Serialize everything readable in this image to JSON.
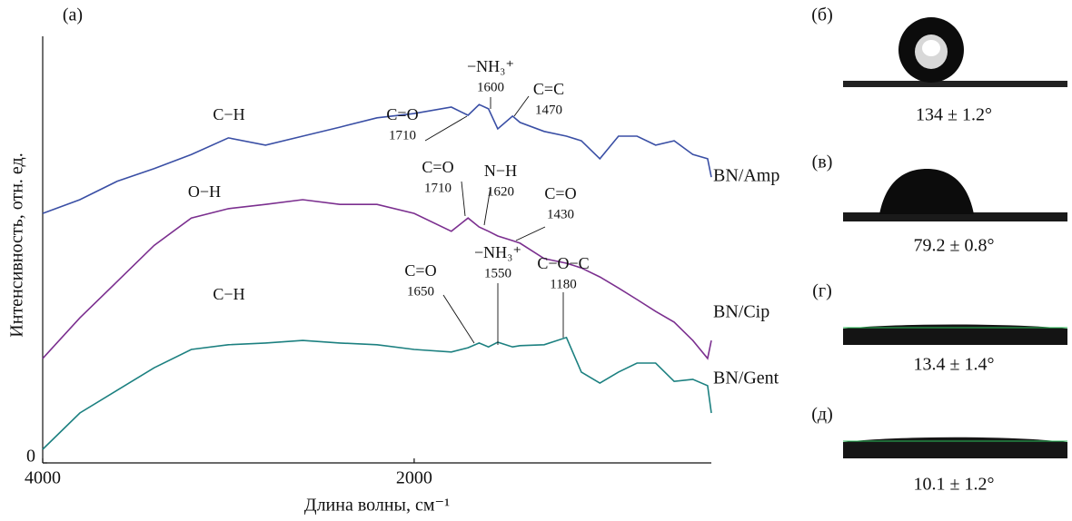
{
  "chart_data": {
    "type": "line",
    "panel_label": "(a)",
    "x_label": "Длина волны, см⁻¹",
    "y_label": "Интенсивность, отн. ед.",
    "xlim": [
      4000,
      400
    ],
    "xticks": [
      4000,
      2000
    ],
    "ylim": [
      0,
      100
    ],
    "yticks": [
      0
    ],
    "x": [
      4000,
      3800,
      3600,
      3400,
      3200,
      3000,
      2800,
      2600,
      2400,
      2200,
      2000,
      1800,
      1710,
      1650,
      1600,
      1550,
      1470,
      1430,
      1300,
      1180,
      1100,
      1000,
      900,
      800,
      700,
      600,
      500,
      420,
      400
    ],
    "series": [
      {
        "name": "BN/Amp",
        "color": "#3a4fa5",
        "values": [
          58.5,
          61.7,
          66,
          69,
          72.3,
          76.2,
          74.5,
          76.6,
          78.7,
          80.9,
          81.9,
          83.4,
          81.5,
          84,
          83,
          78.3,
          81.3,
          79.8,
          77.7,
          76.6,
          75.5,
          71.3,
          76.6,
          76.6,
          74.5,
          75.5,
          72.3,
          71.3,
          67
        ],
        "annotations": [
          {
            "label": "C−H"
          },
          {
            "label": "C=O",
            "wavenumber": 1710
          },
          {
            "label": "−NH₃⁺",
            "wavenumber": 1600
          },
          {
            "label": "C=C",
            "wavenumber": 1470
          }
        ]
      },
      {
        "name": "BN/Cip",
        "color": "#7b2f8f",
        "values": [
          24.5,
          34,
          42.5,
          51,
          57.4,
          59.6,
          60.6,
          61.7,
          60.6,
          60.6,
          58.5,
          54.3,
          57.4,
          55.3,
          54.3,
          53.2,
          52.1,
          51.5,
          47.9,
          46.8,
          45.7,
          43.6,
          41,
          38.3,
          35.5,
          33,
          28.7,
          24.5,
          28.7
        ],
        "annotations": [
          {
            "label": "O−H"
          },
          {
            "label": "C=O",
            "wavenumber": 1710
          },
          {
            "label": "N−H",
            "wavenumber": 1620
          },
          {
            "label": "C=O",
            "wavenumber": 1430
          }
        ]
      },
      {
        "name": "BN/Gent",
        "color": "#1c8080",
        "values": [
          3.2,
          11.7,
          17,
          22.3,
          26.6,
          27.7,
          28.1,
          28.7,
          28.1,
          27.7,
          26.6,
          26,
          27,
          28.1,
          27.2,
          28.3,
          27.2,
          27.5,
          27.7,
          29.4,
          21.3,
          18.7,
          21.3,
          23.4,
          23.4,
          19.1,
          19.6,
          18.1,
          11.7
        ],
        "annotations": [
          {
            "label": "C−H"
          },
          {
            "label": "C=O",
            "wavenumber": 1650
          },
          {
            "label": "−NH₃⁺",
            "wavenumber": 1550
          },
          {
            "label": "C−O−C",
            "wavenumber": 1180
          }
        ]
      }
    ]
  },
  "panels": [
    {
      "label": "(б)",
      "caption": "134 ± 1.2°"
    },
    {
      "label": "(в)",
      "caption": "79.2 ± 0.8°"
    },
    {
      "label": "(г)",
      "caption": "13.4 ± 1.4°"
    },
    {
      "label": "(д)",
      "caption": "10.1 ± 1.2°"
    }
  ]
}
